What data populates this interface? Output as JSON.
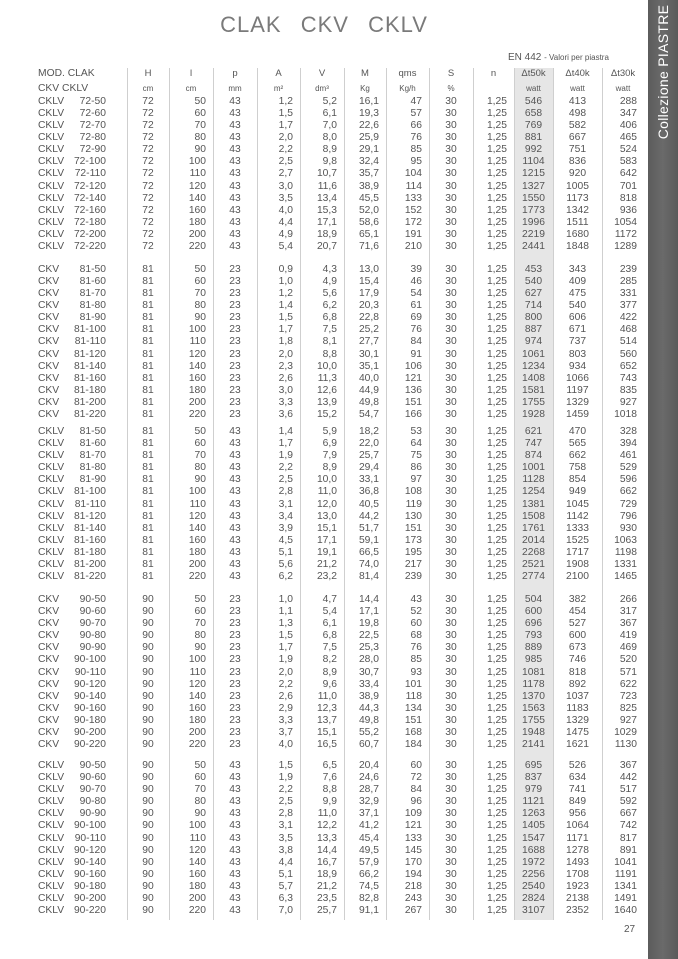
{
  "title": [
    "CLAK",
    "CKV",
    "CKLV"
  ],
  "side_band": "Collezione PIASTRE",
  "standard": {
    "name": "EN 442",
    "note": "- Valori per piastra"
  },
  "headers": {
    "model_line1": "MOD. CLAK",
    "model_line2": "CKV  CKLV",
    "columns": [
      {
        "label": "H",
        "unit": "cm"
      },
      {
        "label": "l",
        "unit": "cm"
      },
      {
        "label": "p",
        "unit": "mm"
      },
      {
        "label": "A",
        "unit": "m²"
      },
      {
        "label": "V",
        "unit": "dm³"
      },
      {
        "label": "M",
        "unit": "Kg"
      },
      {
        "label": "qms",
        "unit": "Kg/h"
      },
      {
        "label": "S",
        "unit": "%"
      },
      {
        "label": "n",
        "unit": ""
      },
      {
        "label": "Δt50k",
        "unit": "watt"
      },
      {
        "label": "Δt40k",
        "unit": "watt"
      },
      {
        "label": "Δt30k",
        "unit": "watt"
      }
    ]
  },
  "highlight_color": "#e6e6e6",
  "band_color": "#606060",
  "blocks": [
    {
      "prefix": "CKLV",
      "H": "72",
      "p": "43",
      "S": "30",
      "n": "1,25",
      "codes": [
        "72-50",
        "72-60",
        "72-70",
        "72-80",
        "72-90",
        "72-100",
        "72-110",
        "72-120",
        "72-140",
        "72-160",
        "72-180",
        "72-200",
        "72-220"
      ],
      "l": [
        "50",
        "60",
        "70",
        "80",
        "90",
        "100",
        "110",
        "120",
        "140",
        "160",
        "180",
        "200",
        "220"
      ],
      "A": [
        "1,2",
        "1,5",
        "1,7",
        "2,0",
        "2,2",
        "2,5",
        "2,7",
        "3,0",
        "3,5",
        "4,0",
        "4,4",
        "4,9",
        "5,4"
      ],
      "V": [
        "5,2",
        "6,1",
        "7,0",
        "8,0",
        "8,9",
        "9,8",
        "10,7",
        "11,6",
        "13,4",
        "15,3",
        "17,1",
        "18,9",
        "20,7"
      ],
      "M": [
        "16,1",
        "19,3",
        "22,6",
        "25,9",
        "29,1",
        "32,4",
        "35,7",
        "38,9",
        "45,5",
        "52,0",
        "58,6",
        "65,1",
        "71,6"
      ],
      "qms": [
        "47",
        "57",
        "66",
        "76",
        "85",
        "95",
        "104",
        "114",
        "133",
        "152",
        "172",
        "191",
        "210"
      ],
      "t50": [
        "546",
        "658",
        "769",
        "881",
        "992",
        "1104",
        "1215",
        "1327",
        "1550",
        "1773",
        "1996",
        "2219",
        "2441"
      ],
      "t40": [
        "413",
        "498",
        "582",
        "667",
        "751",
        "836",
        "920",
        "1005",
        "1173",
        "1342",
        "1511",
        "1680",
        "1848"
      ],
      "t30": [
        "288",
        "347",
        "406",
        "465",
        "524",
        "583",
        "642",
        "701",
        "818",
        "936",
        "1054",
        "1172",
        "1289"
      ]
    },
    {
      "prefix": "CKV",
      "H": "81",
      "p": "23",
      "S": "30",
      "n": "1,25",
      "codes": [
        "81-50",
        "81-60",
        "81-70",
        "81-80",
        "81-90",
        "81-100",
        "81-110",
        "81-120",
        "81-140",
        "81-160",
        "81-180",
        "81-200",
        "81-220"
      ],
      "l": [
        "50",
        "60",
        "70",
        "80",
        "90",
        "100",
        "110",
        "120",
        "140",
        "160",
        "180",
        "200",
        "220"
      ],
      "A": [
        "0,9",
        "1,0",
        "1,2",
        "1,4",
        "1,5",
        "1,7",
        "1,8",
        "2,0",
        "2,3",
        "2,6",
        "3,0",
        "3,3",
        "3,6"
      ],
      "V": [
        "4,3",
        "4,9",
        "5,6",
        "6,2",
        "6,8",
        "7,5",
        "8,1",
        "8,8",
        "10,0",
        "11,3",
        "12,6",
        "13,9",
        "15,2"
      ],
      "M": [
        "13,0",
        "15,4",
        "17,9",
        "20,3",
        "22,8",
        "25,2",
        "27,7",
        "30,1",
        "35,1",
        "40,0",
        "44,9",
        "49,8",
        "54,7"
      ],
      "qms": [
        "39",
        "46",
        "54",
        "61",
        "69",
        "76",
        "84",
        "91",
        "106",
        "121",
        "136",
        "151",
        "166"
      ],
      "t50": [
        "453",
        "540",
        "627",
        "714",
        "800",
        "887",
        "974",
        "1061",
        "1234",
        "1408",
        "1581",
        "1755",
        "1928"
      ],
      "t40": [
        "343",
        "409",
        "475",
        "540",
        "606",
        "671",
        "737",
        "803",
        "934",
        "1066",
        "1197",
        "1329",
        "1459"
      ],
      "t30": [
        "239",
        "285",
        "331",
        "377",
        "422",
        "468",
        "514",
        "560",
        "652",
        "743",
        "835",
        "927",
        "1018"
      ]
    },
    {
      "prefix": "CKLV",
      "H": "81",
      "p": "43",
      "S": "30",
      "n": "1,25",
      "codes": [
        "81-50",
        "81-60",
        "81-70",
        "81-80",
        "81-90",
        "81-100",
        "81-110",
        "81-120",
        "81-140",
        "81-160",
        "81-180",
        "81-200",
        "81-220"
      ],
      "l": [
        "50",
        "60",
        "70",
        "80",
        "90",
        "100",
        "110",
        "120",
        "140",
        "160",
        "180",
        "200",
        "220"
      ],
      "A": [
        "1,4",
        "1,7",
        "1,9",
        "2,2",
        "2,5",
        "2,8",
        "3,1",
        "3,4",
        "3,9",
        "4,5",
        "5,1",
        "5,6",
        "6,2"
      ],
      "V": [
        "5,9",
        "6,9",
        "7,9",
        "8,9",
        "10,0",
        "11,0",
        "12,0",
        "13,0",
        "15,1",
        "17,1",
        "19,1",
        "21,2",
        "23,2"
      ],
      "M": [
        "18,2",
        "22,0",
        "25,7",
        "29,4",
        "33,1",
        "36,8",
        "40,5",
        "44,2",
        "51,7",
        "59,1",
        "66,5",
        "74,0",
        "81,4"
      ],
      "qms": [
        "53",
        "64",
        "75",
        "86",
        "97",
        "108",
        "119",
        "130",
        "151",
        "173",
        "195",
        "217",
        "239"
      ],
      "t50": [
        "621",
        "747",
        "874",
        "1001",
        "1128",
        "1254",
        "1381",
        "1508",
        "1761",
        "2014",
        "2268",
        "2521",
        "2774"
      ],
      "t40": [
        "470",
        "565",
        "662",
        "758",
        "854",
        "949",
        "1045",
        "1142",
        "1333",
        "1525",
        "1717",
        "1908",
        "2100"
      ],
      "t30": [
        "328",
        "394",
        "461",
        "529",
        "596",
        "662",
        "729",
        "796",
        "930",
        "1063",
        "1198",
        "1331",
        "1465"
      ]
    },
    {
      "prefix": "CKV",
      "H": "90",
      "p": "23",
      "S": "30",
      "n": "1,25",
      "codes": [
        "90-50",
        "90-60",
        "90-70",
        "90-80",
        "90-90",
        "90-100",
        "90-110",
        "90-120",
        "90-140",
        "90-160",
        "90-180",
        "90-200",
        "90-220"
      ],
      "l": [
        "50",
        "60",
        "70",
        "80",
        "90",
        "100",
        "110",
        "120",
        "140",
        "160",
        "180",
        "200",
        "220"
      ],
      "A": [
        "1,0",
        "1,1",
        "1,3",
        "1,5",
        "1,7",
        "1,9",
        "2,0",
        "2,2",
        "2,6",
        "2,9",
        "3,3",
        "3,7",
        "4,0"
      ],
      "V": [
        "4,7",
        "5,4",
        "6,1",
        "6,8",
        "7,5",
        "8,2",
        "8,9",
        "9,6",
        "11,0",
        "12,3",
        "13,7",
        "15,1",
        "16,5"
      ],
      "M": [
        "14,4",
        "17,1",
        "19,8",
        "22,5",
        "25,3",
        "28,0",
        "30,7",
        "33,4",
        "38,9",
        "44,3",
        "49,8",
        "55,2",
        "60,7"
      ],
      "qms": [
        "43",
        "52",
        "60",
        "68",
        "76",
        "85",
        "93",
        "101",
        "118",
        "134",
        "151",
        "168",
        "184"
      ],
      "t50": [
        "504",
        "600",
        "696",
        "793",
        "889",
        "985",
        "1081",
        "1178",
        "1370",
        "1563",
        "1755",
        "1948",
        "2141"
      ],
      "t40": [
        "382",
        "454",
        "527",
        "600",
        "673",
        "746",
        "818",
        "892",
        "1037",
        "1183",
        "1329",
        "1475",
        "1621"
      ],
      "t30": [
        "266",
        "317",
        "367",
        "419",
        "469",
        "520",
        "571",
        "622",
        "723",
        "825",
        "927",
        "1029",
        "1130"
      ]
    },
    {
      "prefix": "CKLV",
      "H": "90",
      "p": "43",
      "S": "30",
      "n": "1,25",
      "codes": [
        "90-50",
        "90-60",
        "90-70",
        "90-80",
        "90-90",
        "90-100",
        "90-110",
        "90-120",
        "90-140",
        "90-160",
        "90-180",
        "90-200",
        "90-220"
      ],
      "l": [
        "50",
        "60",
        "70",
        "80",
        "90",
        "100",
        "110",
        "120",
        "140",
        "160",
        "180",
        "200",
        "220"
      ],
      "A": [
        "1,5",
        "1,9",
        "2,2",
        "2,5",
        "2,8",
        "3,1",
        "3,5",
        "3,8",
        "4,4",
        "5,1",
        "5,7",
        "6,3",
        "7,0"
      ],
      "V": [
        "6,5",
        "7,6",
        "8,8",
        "9,9",
        "11,0",
        "12,2",
        "13,3",
        "14,4",
        "16,7",
        "18,9",
        "21,2",
        "23,5",
        "25,7"
      ],
      "M": [
        "20,4",
        "24,6",
        "28,7",
        "32,9",
        "37,1",
        "41,2",
        "45,4",
        "49,5",
        "57,9",
        "66,2",
        "74,5",
        "82,8",
        "91,1"
      ],
      "qms": [
        "60",
        "72",
        "84",
        "96",
        "109",
        "121",
        "133",
        "145",
        "170",
        "194",
        "218",
        "243",
        "267"
      ],
      "t50": [
        "695",
        "837",
        "979",
        "1121",
        "1263",
        "1405",
        "1547",
        "1688",
        "1972",
        "2256",
        "2540",
        "2824",
        "3107"
      ],
      "t40": [
        "526",
        "634",
        "741",
        "849",
        "956",
        "1064",
        "1171",
        "1278",
        "1493",
        "1708",
        "1923",
        "2138",
        "2352"
      ],
      "t30": [
        "367",
        "442",
        "517",
        "592",
        "667",
        "742",
        "817",
        "891",
        "1041",
        "1191",
        "1341",
        "1491",
        "1640"
      ]
    }
  ],
  "page_number": "27"
}
